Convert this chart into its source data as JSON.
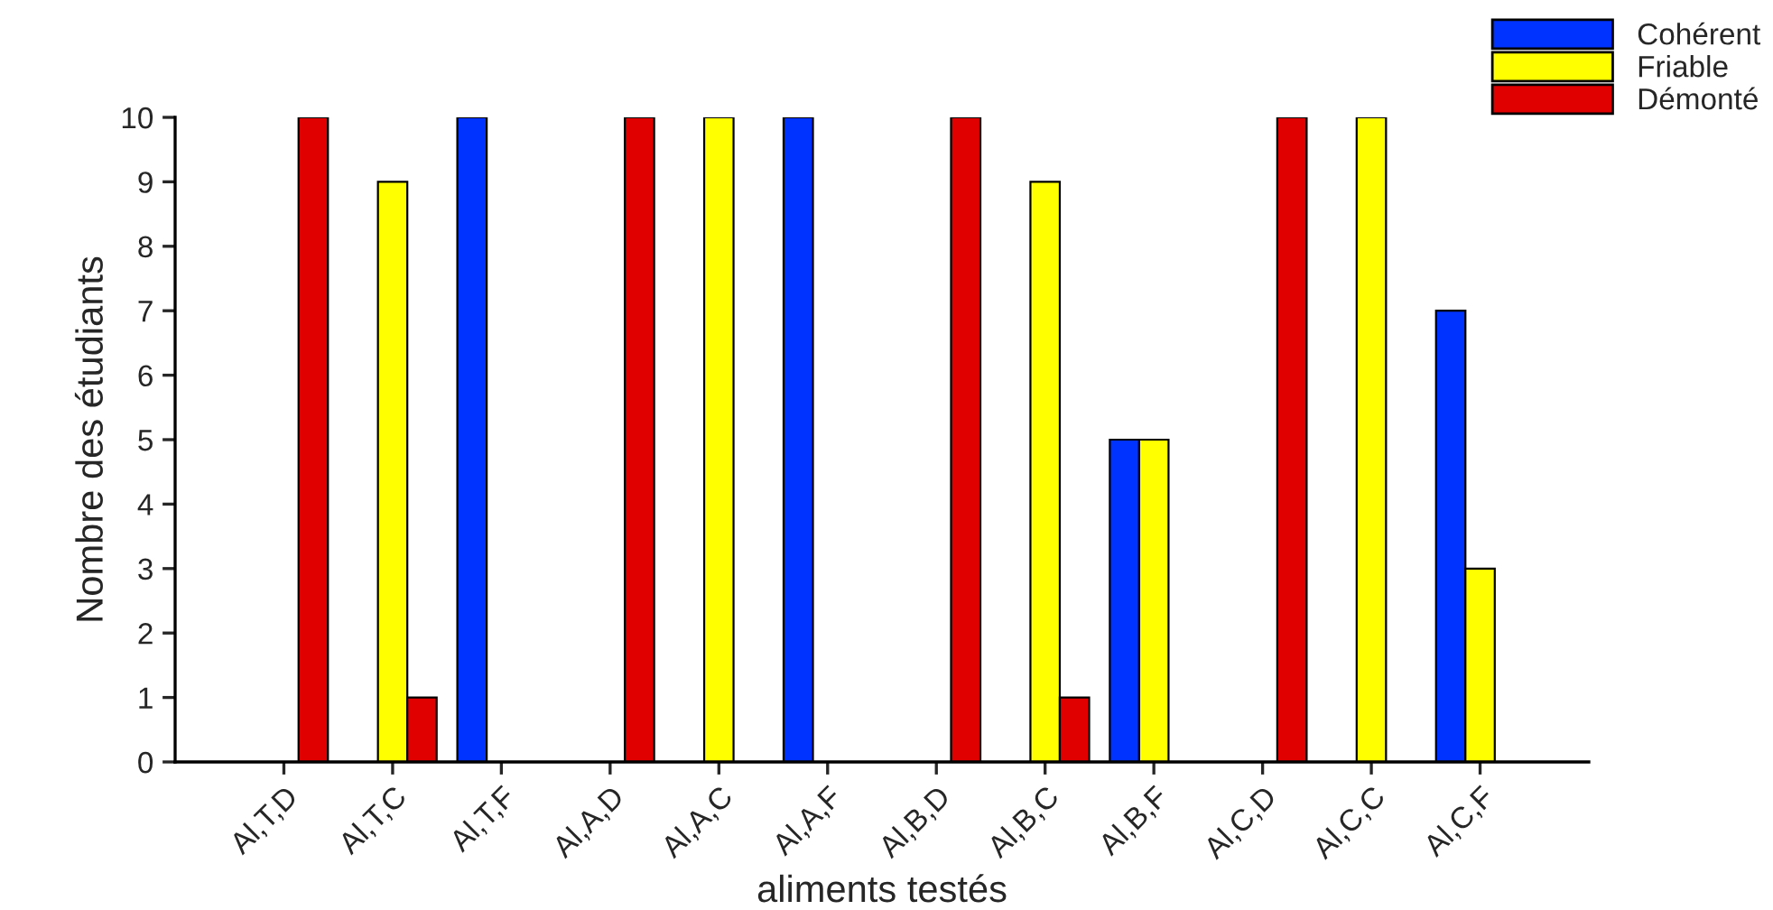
{
  "chart_data": {
    "type": "bar",
    "xlabel": "aliments testés",
    "ylabel": "Nombre des étudiants",
    "categories": [
      "Al,T,D",
      "Al,T,C",
      "Al,T,F",
      "Al,A,D",
      "Al,A,C",
      "Al,A,F",
      "Al,B,D",
      "Al,B,C",
      "Al,B,F",
      "Al,C,D",
      "Al,C,C",
      "Al,C,F"
    ],
    "series": [
      {
        "name": "Cohérent",
        "color": "#0033ff",
        "values": [
          null,
          null,
          10,
          null,
          null,
          10,
          null,
          null,
          5,
          null,
          null,
          7
        ]
      },
      {
        "name": "Friable",
        "color": "#ffff00",
        "values": [
          null,
          9,
          null,
          null,
          10,
          null,
          null,
          9,
          5,
          null,
          10,
          3
        ]
      },
      {
        "name": "Démonté",
        "color": "#e00000",
        "values": [
          10,
          1,
          null,
          10,
          null,
          null,
          10,
          1,
          null,
          10,
          null,
          null
        ]
      }
    ],
    "ylim": [
      0,
      10
    ],
    "yticks": [
      0,
      1,
      2,
      3,
      4,
      5,
      6,
      7,
      8,
      9,
      10
    ],
    "grid": false,
    "legend": "top right"
  }
}
